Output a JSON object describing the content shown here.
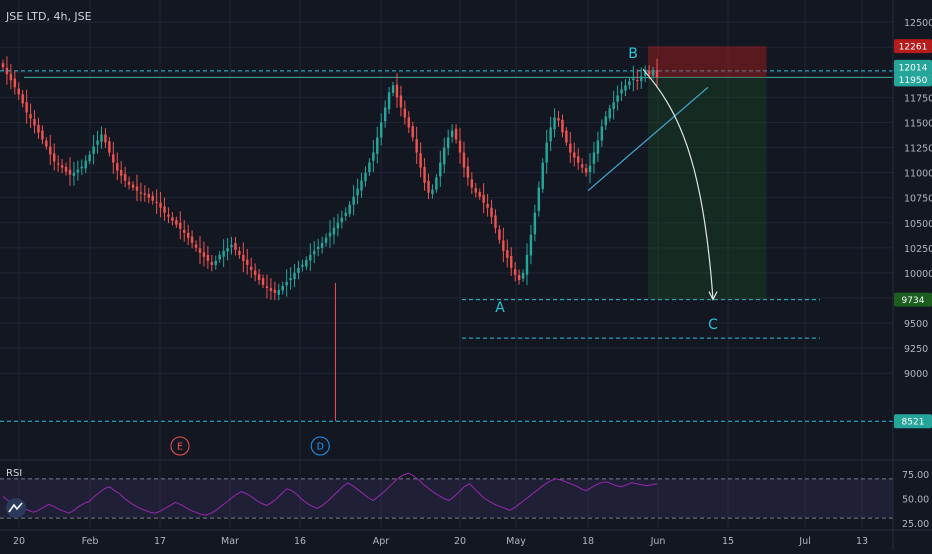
{
  "header": {
    "symbol": "JSE LTD, 4h, JSE"
  },
  "colors": {
    "background": "#131722",
    "up": "#26a69a",
    "down": "#ef5350",
    "accent": "#26c6da",
    "grid": "#1f2533",
    "axis_text": "#b2b5be",
    "rsi": "#9c27b0"
  },
  "chart_data": [
    {
      "type": "candlestick",
      "title": "JSE LTD, 4h, JSE",
      "x_ticks": [
        "20",
        "Feb",
        "17",
        "Mar",
        "16",
        "Apr",
        "20",
        "May",
        "18",
        "Jun",
        "15",
        "Jul",
        "13"
      ],
      "y_ticks": [
        9000,
        9250,
        9500,
        9750,
        10000,
        10250,
        10500,
        10750,
        11000,
        11250,
        11500,
        11750,
        12000,
        12250,
        12500
      ],
      "ylim": [
        8500,
        12500
      ],
      "price_labels": [
        {
          "text": "12261",
          "value": 12261,
          "color": "#b71c1c"
        },
        {
          "text": "12014",
          "value": 12014,
          "color": "#26a69a"
        },
        {
          "text": "11950",
          "value": 11950,
          "color": "#26a69a"
        },
        {
          "text": "9734",
          "value": 9734,
          "color": "#1b5e20"
        },
        {
          "text": "8521",
          "value": 8521,
          "color": "#26a69a"
        }
      ],
      "horizontal_levels": [
        12014,
        11950,
        9734,
        9350,
        8521
      ],
      "wave_labels": [
        {
          "text": "A",
          "price": 9660,
          "date": "2020-04-30"
        },
        {
          "text": "B",
          "price": 12190,
          "date": "2020-05-27"
        },
        {
          "text": "C",
          "price": 9490,
          "date": "2020-06-12"
        }
      ],
      "event_markers": [
        {
          "text": "E",
          "date": "2020-02-21"
        },
        {
          "text": "D",
          "date": "2020-03-20"
        }
      ],
      "position": {
        "entry": 11950,
        "stop": 12261,
        "target": 9734,
        "start": "2020-05-30",
        "end": "2020-06-23"
      },
      "trendline": {
        "start": {
          "date": "2020-05-18",
          "price": 10820
        },
        "end": {
          "date": "2020-06-11",
          "price": 11850
        }
      },
      "projection": {
        "from": {
          "date": "2020-05-29",
          "price": 12030
        },
        "to": {
          "date": "2020-06-12",
          "price": 9734
        }
      },
      "series": [
        {
          "close": [
            12050,
            11980,
            11920,
            11850,
            11780,
            11690,
            11600,
            11540,
            11470,
            11400,
            11330,
            11260,
            11180,
            11110,
            11080,
            11050,
            11010,
            10980,
            11000,
            11030,
            11060,
            11120,
            11180,
            11260,
            11320,
            11380,
            11300,
            11200,
            11100,
            11020,
            10970,
            10920,
            10880,
            10850,
            10820,
            10800,
            10780,
            10750,
            10720,
            10700,
            10650,
            10600,
            10560,
            10520,
            10480,
            10440,
            10400,
            10350,
            10300,
            10250,
            10200,
            10160,
            10120,
            10080,
            10120,
            10180,
            10220,
            10250,
            10280,
            10230,
            10180,
            10120,
            10080,
            10030,
            9980,
            9930,
            9880,
            9850,
            9820,
            9800,
            9830,
            9870,
            9910,
            9950,
            10000,
            10050,
            10080,
            10130,
            10180,
            10220,
            10260,
            10300,
            10350,
            10400,
            10450,
            10500,
            10550,
            10600,
            10680,
            10760,
            10840,
            10920,
            11000,
            11100,
            11200,
            11350,
            11500,
            11650,
            11800,
            11870,
            11750,
            11650,
            11550,
            11450,
            11350,
            11200,
            11050,
            10900,
            10800,
            10830,
            10950,
            11100,
            11250,
            11350,
            11420,
            11330,
            11200,
            11050,
            10950,
            10850,
            10800,
            10760,
            10700,
            10650,
            10560,
            10450,
            10330,
            10220,
            10150,
            10050,
            9980,
            9930,
            10000,
            10180,
            10380,
            10600,
            10850,
            11100,
            11300,
            11450,
            11550,
            11520,
            11400,
            11300,
            11200,
            11150,
            11100,
            11050,
            11000,
            11070,
            11200,
            11320,
            11460,
            11560,
            11640,
            11700,
            11770,
            11830,
            11870,
            11910,
            11940,
            11920,
            11960,
            12000,
            11980,
            12020,
            11950
          ]
        }
      ]
    },
    {
      "type": "line",
      "title": "RSI",
      "y_ticks": [
        "75.00",
        "50.00",
        "25.00"
      ],
      "ylim": [
        22,
        80
      ],
      "levels": [
        70,
        30
      ],
      "series": [
        {
          "name": "RSI",
          "values": [
            52,
            48,
            45,
            43,
            40,
            38,
            36,
            38,
            41,
            44,
            42,
            39,
            37,
            35,
            38,
            42,
            45,
            47,
            52,
            56,
            60,
            62,
            58,
            55,
            50,
            46,
            43,
            40,
            38,
            36,
            35,
            37,
            40,
            43,
            46,
            44,
            41,
            38,
            36,
            34,
            33,
            35,
            38,
            42,
            46,
            50,
            54,
            57,
            55,
            52,
            48,
            45,
            43,
            46,
            50,
            55,
            60,
            58,
            54,
            49,
            45,
            42,
            40,
            43,
            47,
            52,
            57,
            62,
            66,
            63,
            59,
            55,
            51,
            48,
            52,
            56,
            61,
            66,
            71,
            74,
            76,
            73,
            69,
            64,
            60,
            56,
            53,
            50,
            48,
            52,
            57,
            62,
            65,
            60,
            55,
            50,
            47,
            44,
            42,
            40,
            38,
            41,
            45,
            49,
            53,
            57,
            61,
            65,
            68,
            70,
            69,
            67,
            65,
            63,
            60,
            58,
            61,
            64,
            66,
            67,
            65,
            63,
            62,
            64,
            66,
            65,
            64,
            63,
            64,
            65
          ]
        }
      ]
    }
  ]
}
